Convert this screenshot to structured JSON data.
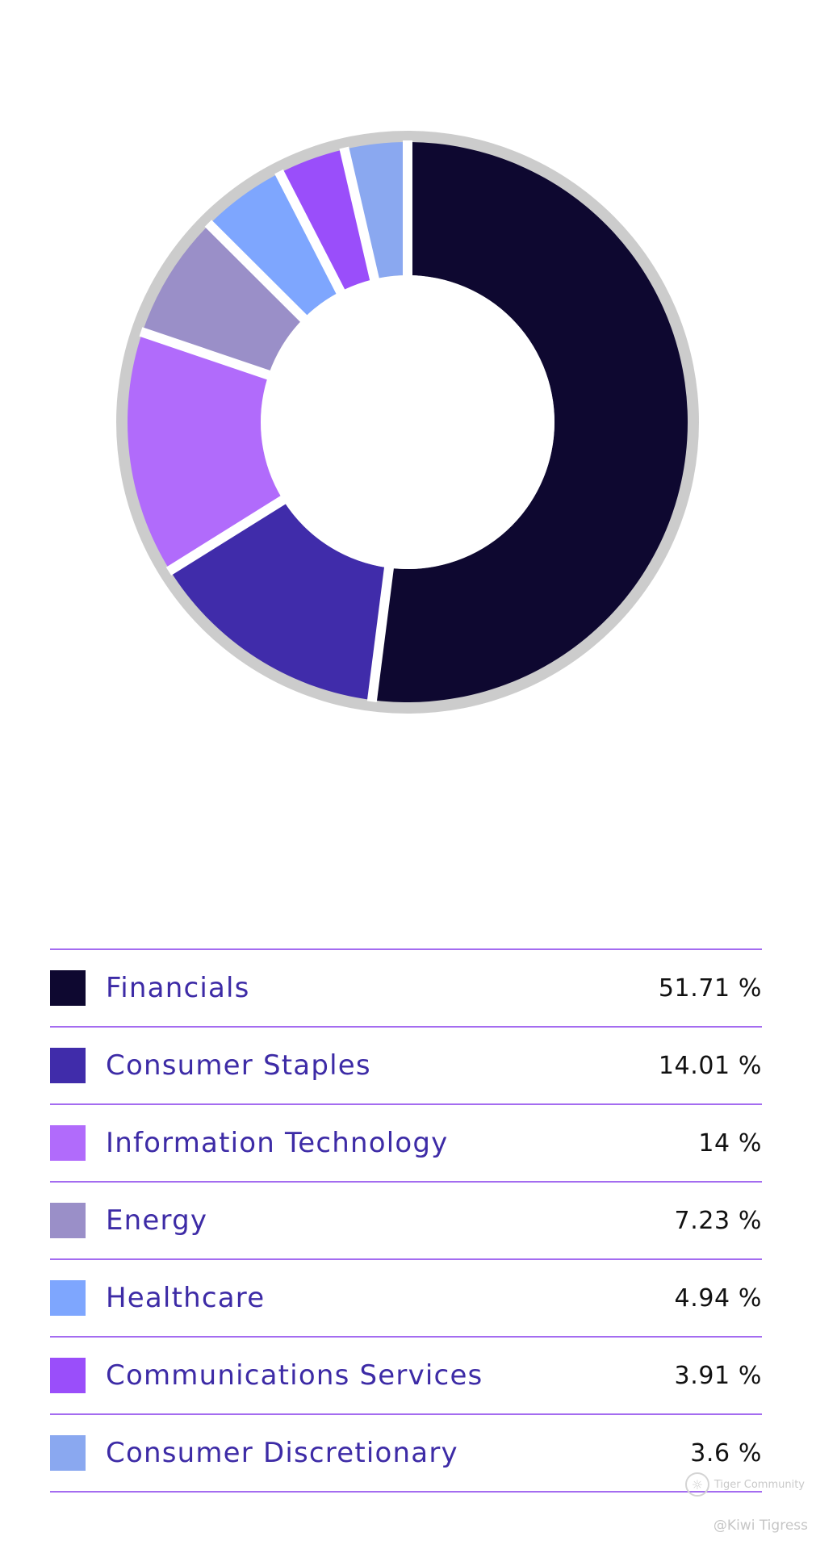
{
  "chart_data": {
    "type": "pie",
    "style": "donut",
    "categories": [
      "Financials",
      "Consumer Staples",
      "Information Technology",
      "Energy",
      "Healthcare",
      "Communications Services",
      "Consumer Discretionary"
    ],
    "values": [
      51.71,
      14.01,
      14,
      7.23,
      4.94,
      3.91,
      3.6
    ],
    "value_labels": [
      "51.71 %",
      "14.01 %",
      "14 %",
      "7.23 %",
      "4.94 %",
      "3.91 %",
      "3.6 %"
    ],
    "colors": [
      "#0e0830",
      "#402caa",
      "#b16bfb",
      "#9a8fc8",
      "#7ea6fe",
      "#9a4efa",
      "#8aa8f0"
    ],
    "ring_color": "#cccccc",
    "legend_position": "bottom"
  },
  "legend": {
    "items": [
      {
        "label": "Financials",
        "value": "51.71 %",
        "color": "#0e0830"
      },
      {
        "label": "Consumer Staples",
        "value": "14.01 %",
        "color": "#402caa"
      },
      {
        "label": "Information Technology",
        "value": "14 %",
        "color": "#b16bfb"
      },
      {
        "label": "Energy",
        "value": "7.23 %",
        "color": "#9a8fc8"
      },
      {
        "label": "Healthcare",
        "value": "4.94 %",
        "color": "#7ea6fe"
      },
      {
        "label": "Communications Services",
        "value": "3.91 %",
        "color": "#9a4efa"
      },
      {
        "label": "Consumer Discretionary",
        "value": "3.6 %",
        "color": "#8aa8f0"
      }
    ]
  },
  "watermark": {
    "brand": "Tiger Community",
    "user": "@Kiwi Tigress",
    "logo_icon": "tiger-logo-icon"
  }
}
